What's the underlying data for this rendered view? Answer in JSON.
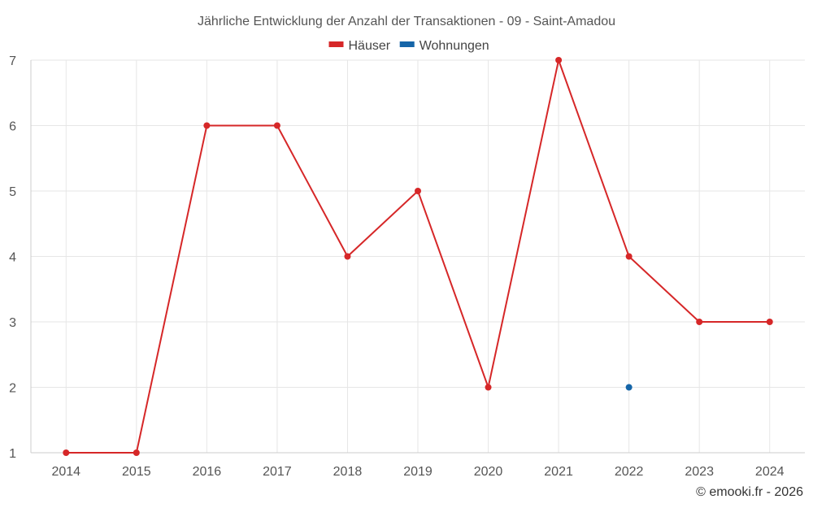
{
  "chart_data": {
    "type": "line",
    "title": "Jährliche Entwicklung der Anzahl der Transaktionen - 09 - Saint-Amadou",
    "categories": [
      "2014",
      "2015",
      "2016",
      "2017",
      "2018",
      "2019",
      "2020",
      "2021",
      "2022",
      "2023",
      "2024"
    ],
    "series": [
      {
        "name": "Häuser",
        "color": "#d62728",
        "values": [
          1,
          1,
          6,
          6,
          4,
          5,
          2,
          7,
          4,
          3,
          3
        ]
      },
      {
        "name": "Wohnungen",
        "color": "#1565a8",
        "values": [
          null,
          null,
          null,
          null,
          null,
          null,
          null,
          null,
          2,
          null,
          null
        ]
      }
    ],
    "ylim": [
      1,
      7
    ],
    "yticks": [
      1,
      2,
      3,
      4,
      5,
      6,
      7
    ],
    "xlabel": "",
    "ylabel": "",
    "grid": true,
    "legend_position": "top-center"
  },
  "credit": "© emooki.fr - 2026"
}
